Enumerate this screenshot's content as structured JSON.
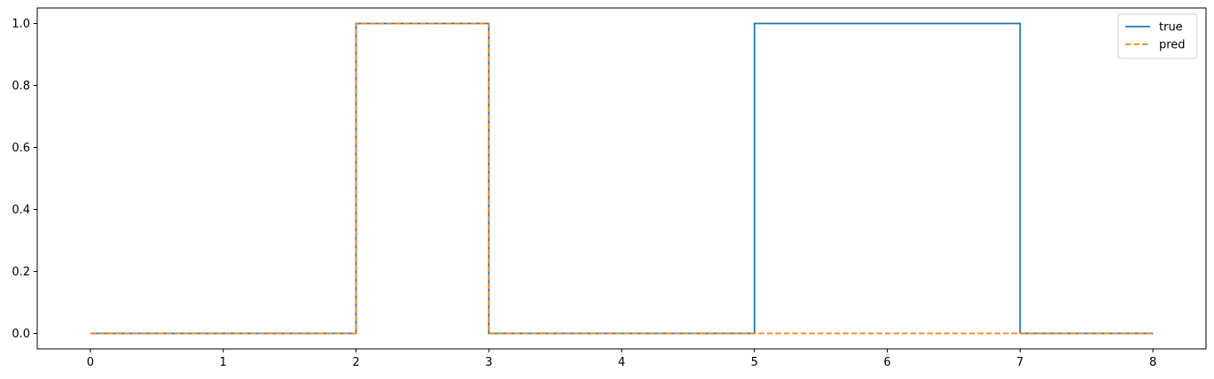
{
  "chart_data": {
    "type": "line",
    "step": "post",
    "title": "",
    "xlabel": "",
    "ylabel": "",
    "xlim": [
      -0.4,
      8.4
    ],
    "ylim": [
      -0.05,
      1.05
    ],
    "x_ticks": [
      "0",
      "1",
      "2",
      "3",
      "4",
      "5",
      "6",
      "7",
      "8"
    ],
    "y_ticks": [
      "0.0",
      "0.2",
      "0.4",
      "0.6",
      "0.8",
      "1.0"
    ],
    "x": [
      0,
      1,
      2,
      3,
      4,
      5,
      6,
      7,
      8
    ],
    "series": [
      {
        "name": "true",
        "values": [
          0,
          0,
          1,
          0,
          0,
          1,
          1,
          0,
          0
        ],
        "color": "#1f77b4",
        "linestyle": "solid"
      },
      {
        "name": "pred",
        "values": [
          0,
          0,
          1,
          0,
          0,
          0,
          0,
          0,
          0
        ],
        "color": "#ff7f0e",
        "linestyle": "dashed"
      }
    ],
    "legend": {
      "placement": "top-right",
      "entries": [
        "true",
        "pred"
      ]
    },
    "grid": false
  }
}
